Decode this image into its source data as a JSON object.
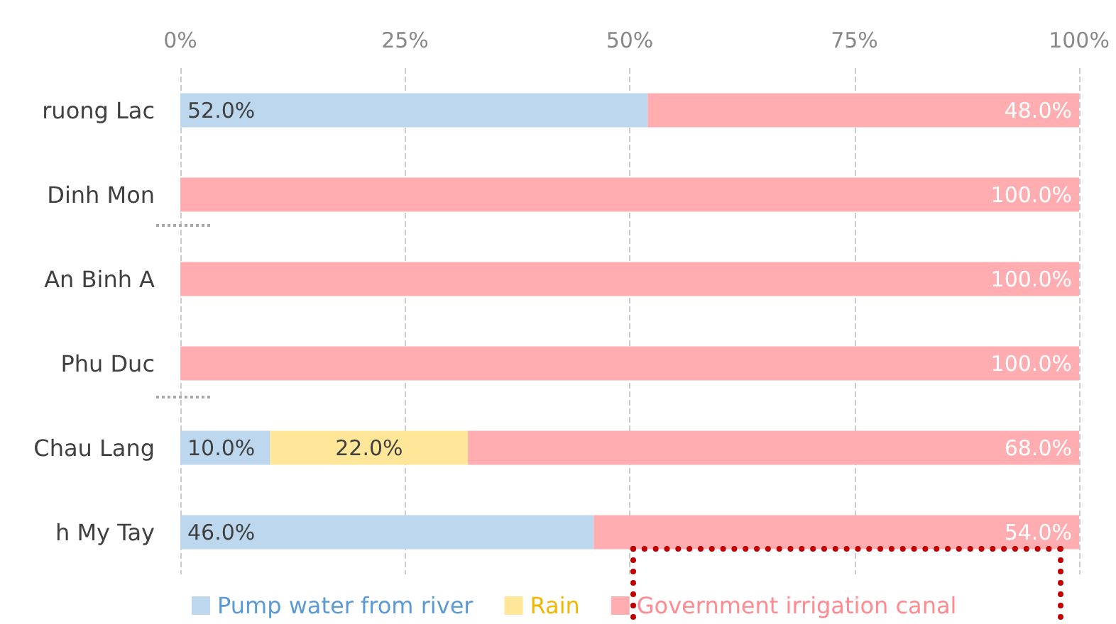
{
  "chart_data": {
    "type": "bar",
    "orientation": "horizontal",
    "stacked": true,
    "categories": [
      "ruong Lac",
      "Dinh Mon",
      "An Binh A",
      "Phu Duc",
      "Chau Lang",
      "h My Tay"
    ],
    "series": [
      {
        "name": "Pump water from river",
        "color": "#bdd7ee",
        "values": [
          52,
          0,
          0,
          0,
          10,
          46
        ],
        "value_labels": [
          "52.0%",
          null,
          null,
          null,
          "10.0%",
          "46.0%"
        ]
      },
      {
        "name": "Rain",
        "color": "#ffe699",
        "values": [
          0,
          0,
          0,
          0,
          22,
          0
        ],
        "value_labels": [
          null,
          null,
          null,
          null,
          "22.0%",
          null
        ]
      },
      {
        "name": "Government irrigation canal",
        "color": "#ffadb0",
        "values": [
          48,
          100,
          100,
          100,
          68,
          54
        ],
        "value_labels": [
          "48.0%",
          "100.0%",
          "100.0%",
          "100.0%",
          "68.0%",
          "54.0%"
        ]
      }
    ],
    "xlim": [
      0,
      100
    ],
    "xticks": [
      {
        "value": 0,
        "label": "0%"
      },
      {
        "value": 25,
        "label": "25%"
      },
      {
        "value": 50,
        "label": "50%"
      },
      {
        "value": 75,
        "label": "75%"
      },
      {
        "value": 100,
        "label": "100%"
      }
    ],
    "grid": "x",
    "legend": "bottom"
  }
}
